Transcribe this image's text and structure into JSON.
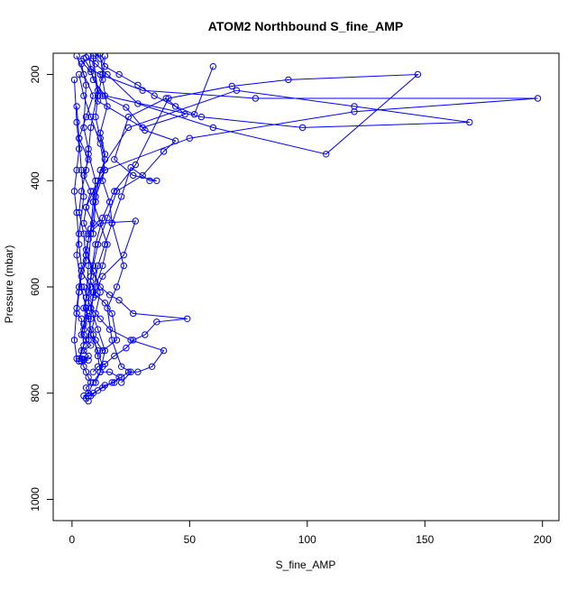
{
  "chart_data": {
    "type": "line",
    "title": "ATOM2 Northbound S_fine_AMP",
    "xlabel": "S_fine_AMP",
    "ylabel": "Pressure (mbar)",
    "xlim": [
      -8,
      207
    ],
    "ylim": [
      1040,
      160
    ],
    "y_inverted": true,
    "x_ticks": [
      0,
      50,
      100,
      150,
      200
    ],
    "y_ticks": [
      200,
      400,
      600,
      800,
      1000
    ],
    "series_color": "#0000FF",
    "marker": "open-circle",
    "grid": false,
    "legend": "none",
    "series": [
      {
        "x": [
          2,
          5,
          9,
          6,
          3,
          7,
          5,
          8,
          6,
          9,
          7,
          6,
          4,
          8,
          6,
          5,
          7,
          5,
          4,
          6,
          8,
          5,
          7,
          4,
          5,
          6,
          7,
          8,
          6,
          7,
          5,
          6,
          7
        ],
        "y": [
          165,
          200,
          240,
          280,
          320,
          360,
          390,
          420,
          450,
          480,
          510,
          540,
          570,
          600,
          620,
          640,
          655,
          670,
          690,
          700,
          710,
          720,
          730,
          740,
          750,
          760,
          770,
          780,
          790,
          800,
          805,
          810,
          815
        ]
      },
      {
        "x": [
          10,
          12,
          14,
          20,
          28,
          35,
          44,
          52,
          60
        ],
        "y": [
          160,
          170,
          185,
          200,
          220,
          240,
          260,
          275,
          185
        ]
      },
      {
        "x": [
          9,
          11,
          30,
          48,
          40,
          24,
          18,
          26,
          36,
          33,
          25,
          21,
          17,
          14,
          11,
          9,
          8,
          7
        ],
        "y": [
          165,
          250,
          300,
          275,
          245,
          280,
          360,
          390,
          400,
          400,
          375,
          430,
          480,
          520,
          560,
          610,
          660,
          700
        ]
      },
      {
        "x": [
          5,
          8,
          12,
          30,
          78,
          198,
          120,
          50,
          14,
          10,
          8,
          7,
          6,
          5
        ],
        "y": [
          170,
          190,
          200,
          230,
          245,
          245,
          270,
          320,
          380,
          430,
          500,
          560,
          620,
          680
        ]
      },
      {
        "x": [
          7,
          9,
          14,
          55,
          98,
          169,
          120,
          70,
          24,
          12,
          10,
          9
        ],
        "y": [
          165,
          210,
          240,
          280,
          300,
          290,
          260,
          230,
          300,
          380,
          440,
          500
        ]
      },
      {
        "x": [
          6,
          10,
          15,
          28,
          60,
          108,
          147,
          92,
          68,
          41,
          27,
          18,
          13,
          10,
          8,
          7,
          5
        ],
        "y": [
          168,
          180,
          200,
          255,
          300,
          350,
          200,
          210,
          222,
          245,
          370,
          420,
          470,
          520,
          580,
          630,
          690
        ]
      },
      {
        "x": [
          4,
          8,
          13,
          23,
          31,
          44,
          39,
          30,
          19,
          15,
          11,
          9,
          7
        ],
        "y": [
          175,
          195,
          240,
          262,
          305,
          325,
          345,
          390,
          420,
          470,
          520,
          560,
          610
        ]
      },
      {
        "x": [
          3,
          5,
          8,
          12,
          14,
          9,
          6,
          5,
          7,
          12,
          27,
          22,
          13,
          9,
          7
        ],
        "y": [
          200,
          240,
          280,
          330,
          380,
          420,
          450,
          480,
          500,
          480,
          476,
          540,
          580,
          620,
          660
        ]
      },
      {
        "x": [
          6,
          9,
          12,
          16,
          20,
          26,
          49,
          36,
          31,
          26,
          23,
          18,
          14,
          11,
          9
        ],
        "y": [
          540,
          570,
          600,
          615,
          625,
          650,
          660,
          666,
          690,
          700,
          715,
          730,
          745,
          750,
          760
        ]
      },
      {
        "x": [
          5,
          8,
          12,
          16,
          25,
          39,
          34,
          28,
          24,
          21,
          17,
          13,
          9,
          7
        ],
        "y": [
          600,
          640,
          660,
          680,
          700,
          720,
          750,
          760,
          760,
          770,
          780,
          790,
          800,
          805
        ]
      },
      {
        "x": [
          8,
          10,
          14,
          17,
          19,
          13,
          10,
          9,
          11,
          12,
          16,
          20,
          18,
          14,
          11,
          8
        ],
        "y": [
          590,
          615,
          630,
          650,
          700,
          720,
          700,
          690,
          730,
          760,
          760,
          770,
          780,
          785,
          795,
          805
        ]
      },
      {
        "x": [
          2,
          3,
          4,
          5,
          3,
          2,
          4,
          6,
          8,
          6,
          4,
          3,
          5,
          7,
          5,
          4
        ],
        "y": [
          260,
          320,
          380,
          430,
          500,
          540,
          600,
          640,
          680,
          700,
          720,
          735,
          738,
          738,
          736,
          735
        ]
      },
      {
        "x": [
          1,
          2,
          3,
          2,
          1,
          2,
          3,
          4,
          3,
          2,
          1,
          2
        ],
        "y": [
          210,
          290,
          340,
          380,
          420,
          460,
          520,
          560,
          600,
          640,
          700,
          735
        ]
      },
      {
        "x": [
          12,
          13,
          11,
          10,
          12,
          14,
          11,
          9,
          12,
          15,
          13,
          10,
          8,
          11,
          14,
          12,
          9,
          7
        ],
        "y": [
          160,
          200,
          240,
          280,
          320,
          360,
          400,
          440,
          480,
          520,
          560,
          600,
          640,
          680,
          720,
          760,
          780,
          800
        ]
      },
      {
        "x": [
          14,
          13,
          15,
          12,
          14,
          13,
          16,
          17,
          22,
          19,
          15,
          17,
          21,
          25,
          21
        ],
        "y": [
          165,
          210,
          260,
          310,
          350,
          400,
          440,
          480,
          560,
          600,
          640,
          700,
          750,
          760,
          780
        ]
      },
      {
        "x": [
          4,
          6,
          5,
          7,
          6,
          4,
          3,
          5,
          6,
          4,
          3,
          2,
          4,
          5,
          3
        ],
        "y": [
          180,
          220,
          300,
          340,
          380,
          420,
          460,
          500,
          550,
          580,
          610,
          650,
          660,
          710,
          740
        ]
      },
      {
        "x": [
          9,
          11,
          8,
          7,
          10,
          9,
          8,
          6,
          9,
          12,
          10,
          8,
          11,
          13,
          10
        ],
        "y": [
          170,
          230,
          300,
          350,
          400,
          440,
          490,
          530,
          570,
          610,
          650,
          690,
          720,
          750,
          780
        ]
      }
    ]
  }
}
